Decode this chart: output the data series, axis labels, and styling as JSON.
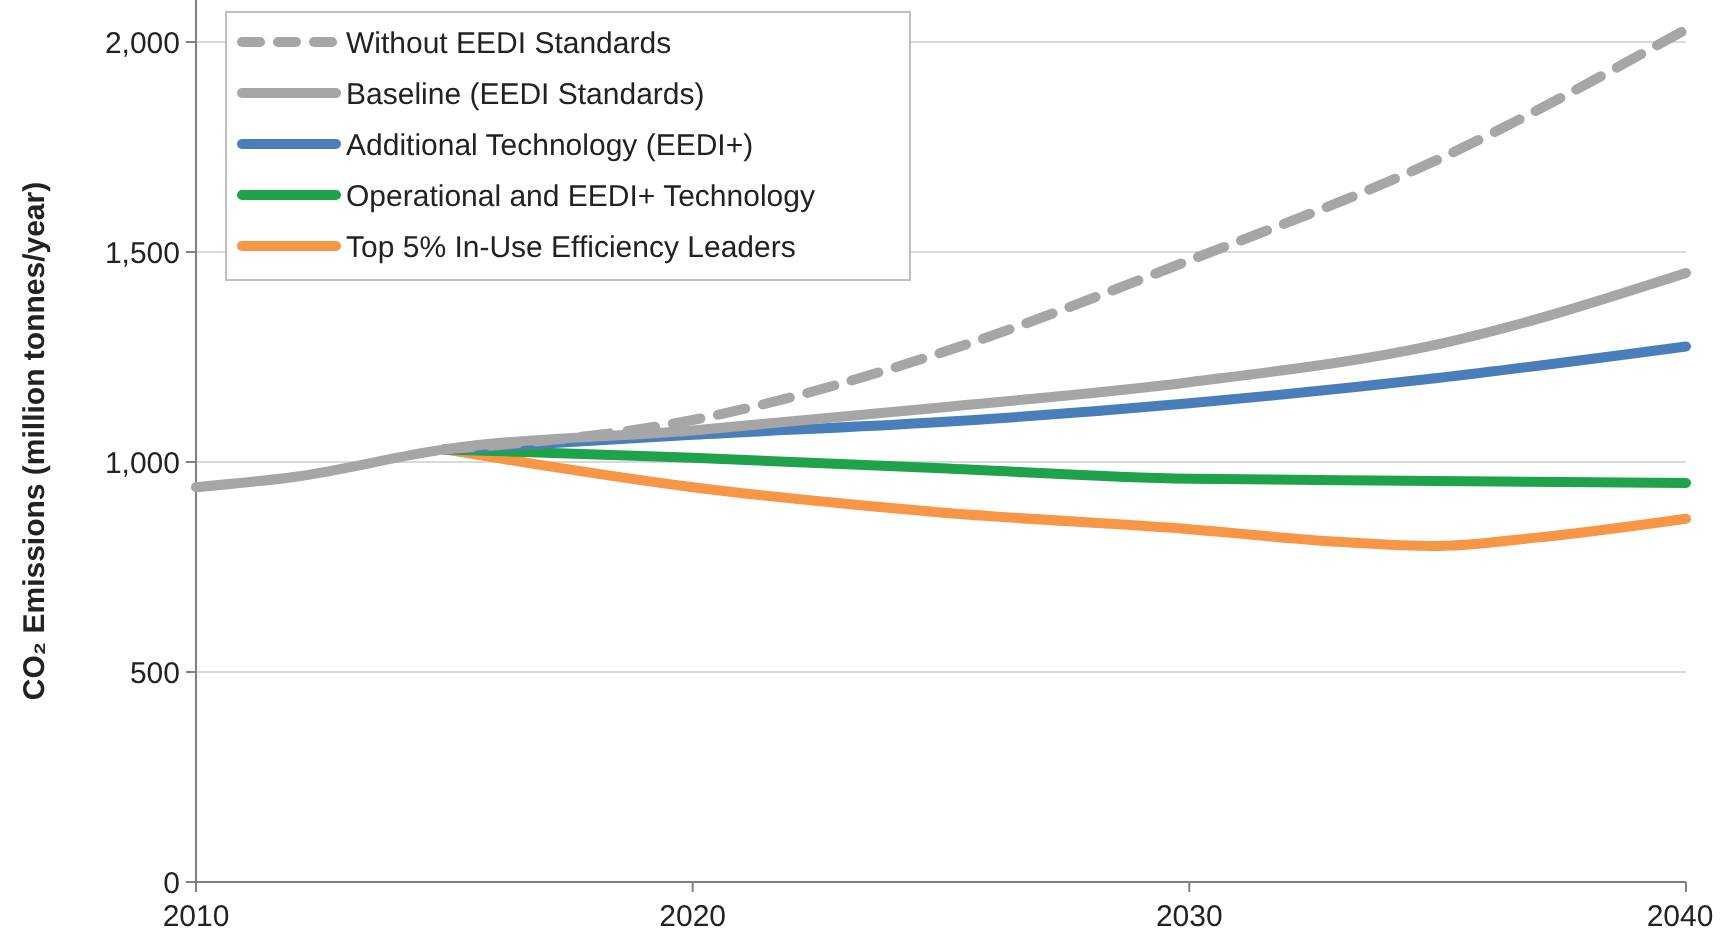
{
  "chart_data": {
    "type": "line",
    "ylabel": "CO₂ Emissions (million tonnes/year)",
    "xlim": [
      2010,
      2040
    ],
    "xticks": [
      2010,
      2020,
      2030,
      2040
    ],
    "ylim": [
      0,
      2100
    ],
    "yticks": [
      0,
      500,
      {
        "value": 1000,
        "label": "1,000"
      },
      {
        "value": 1500,
        "label": "1,500"
      },
      {
        "value": 2000,
        "label": "2,000"
      }
    ],
    "grid": "y",
    "legend": "top left",
    "series": [
      {
        "name": "Without EEDI Standards",
        "color": "#a6a6a6",
        "line_style": "dashed",
        "x": [
          2015,
          2020,
          2025,
          2030,
          2035,
          2040
        ],
        "values": [
          1030,
          1100,
          1260,
          1480,
          1720,
          2030
        ]
      },
      {
        "name": "Baseline (EEDI Standards)",
        "color": "#a6a6a6",
        "x": [
          2010,
          2012,
          2015,
          2020,
          2025,
          2030,
          2035,
          2040
        ],
        "values": [
          940,
          965,
          1030,
          1075,
          1130,
          1190,
          1280,
          1450
        ]
      },
      {
        "name": "Additional Technology (EEDI+)",
        "color": "#4a7ebb",
        "x": [
          2015,
          2020,
          2025,
          2030,
          2035,
          2040
        ],
        "values": [
          1030,
          1065,
          1095,
          1140,
          1200,
          1275
        ]
      },
      {
        "name": "Operational and EEDI+ Technology",
        "color": "#1fa34a",
        "x": [
          2015,
          2020,
          2025,
          2030,
          2035,
          2040
        ],
        "values": [
          1030,
          1010,
          985,
          960,
          955,
          950
        ]
      },
      {
        "name": "Top 5% In-Use Efficiency Leaders",
        "color": "#f79646",
        "x": [
          2015,
          2020,
          2025,
          2030,
          2033,
          2035,
          2037,
          2040
        ],
        "values": [
          1030,
          940,
          880,
          840,
          810,
          800,
          820,
          865
        ]
      }
    ]
  }
}
